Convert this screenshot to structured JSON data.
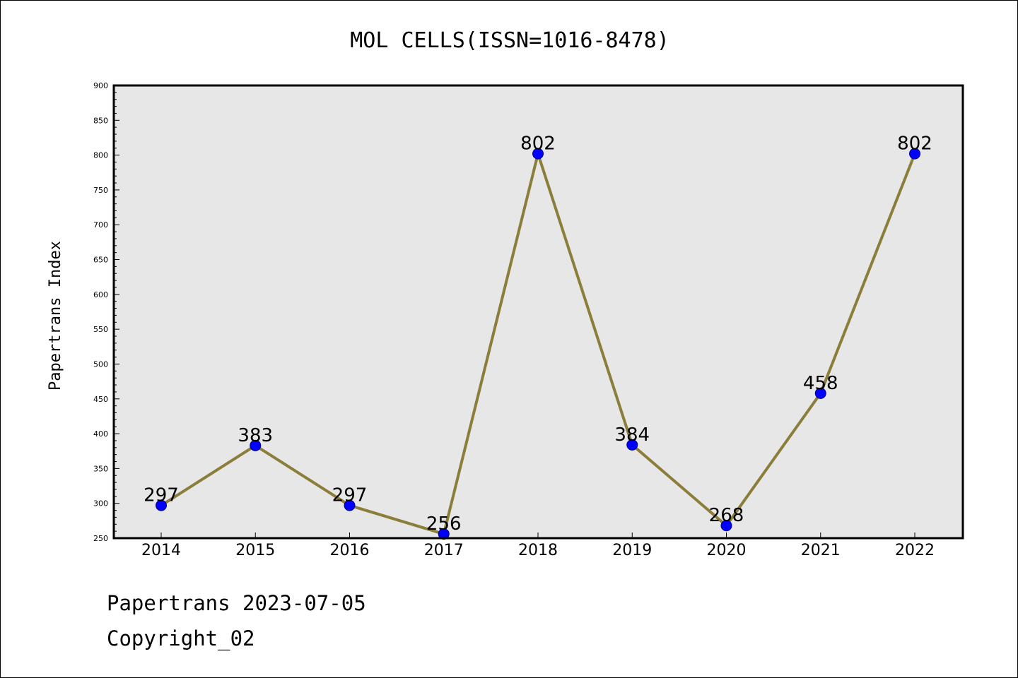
{
  "chart_data": {
    "type": "line",
    "title": "MOL CELLS(ISSN=1016-8478)",
    "xlabel": "",
    "ylabel": "Papertrans Index",
    "categories": [
      "2014",
      "2015",
      "2016",
      "2017",
      "2018",
      "2019",
      "2020",
      "2021",
      "2022"
    ],
    "series": [
      {
        "values": [
          297,
          383,
          297,
          256,
          802,
          384,
          268,
          458,
          802
        ]
      }
    ],
    "data_labels": [
      "297",
      "383",
      "297",
      "256",
      "802",
      "384",
      "268",
      "458",
      "802"
    ],
    "ylim": [
      250,
      900
    ],
    "yticks": [
      250,
      300,
      350,
      400,
      450,
      500,
      550,
      600,
      650,
      700,
      750,
      800,
      850,
      900
    ],
    "ytick_labels": [
      "250",
      "300",
      "350",
      "400",
      "450",
      "500",
      "550",
      "600",
      "650",
      "700",
      "750",
      "800",
      "850",
      "900"
    ],
    "grid": false,
    "colors": {
      "line": "#8b7d3a",
      "marker_fill": "#0000ff",
      "marker_edge": "#000080",
      "plot_background": "#e7e7e7"
    }
  },
  "footer": {
    "date_line": "Papertrans 2023-07-05",
    "copyright": "Copyright_02"
  }
}
